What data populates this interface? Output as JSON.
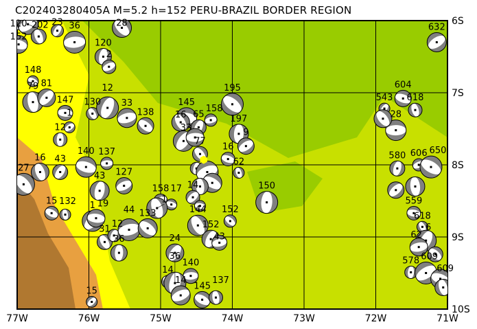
{
  "title": "C202403280405A M=5.2 h=152 PERU-BRAZIL BORDER REGION",
  "colors": {
    "lowland": "#99cc00",
    "plain": "#c8e000",
    "foothill": "#ffff00",
    "andes_low": "#e8a040",
    "andes_high": "#b07830",
    "compression": "#808080",
    "epicenter": "#ffff00"
  },
  "axes": {
    "lon_ticks": [
      {
        "value": -77,
        "label": "77W"
      },
      {
        "value": -76,
        "label": "76W"
      },
      {
        "value": -75,
        "label": "75W"
      },
      {
        "value": -74,
        "label": "74W"
      },
      {
        "value": -73,
        "label": "73W"
      },
      {
        "value": -72,
        "label": "72W"
      },
      {
        "value": -71,
        "label": "71W"
      }
    ],
    "lat_ticks": [
      {
        "value": -6,
        "label": "6S"
      },
      {
        "value": -7,
        "label": "7S"
      },
      {
        "value": -8,
        "label": "8S"
      },
      {
        "value": -9,
        "label": "9S"
      },
      {
        "value": -10,
        "label": "10S"
      }
    ],
    "lon_range": [
      -77,
      -71
    ],
    "lat_range": [
      -10,
      -6
    ]
  },
  "epicenter": {
    "lon": -74.4,
    "lat": -7.93
  },
  "events": [
    {
      "lon": -76.98,
      "lat": -6.05,
      "label": "120"
    },
    {
      "lon": -76.85,
      "lat": -6.05,
      "label": "202"
    },
    {
      "lon": -76.98,
      "lat": -6.33,
      "label": "152"
    },
    {
      "lon": -76.7,
      "lat": -6.22,
      "label": ""
    },
    {
      "lon": -76.44,
      "lat": -6.14,
      "label": "23"
    },
    {
      "lon": -76.2,
      "lat": -6.3,
      "label": "36"
    },
    {
      "lon": -75.54,
      "lat": -6.1,
      "label": "28"
    },
    {
      "lon": -75.8,
      "lat": -6.5,
      "label": "120"
    },
    {
      "lon": -75.72,
      "lat": -6.64,
      "label": "2"
    },
    {
      "lon": -76.78,
      "lat": -6.84,
      "label": "148"
    },
    {
      "lon": -76.78,
      "lat": -7.13,
      "label": "79"
    },
    {
      "lon": -76.59,
      "lat": -7.07,
      "label": "81"
    },
    {
      "lon": -76.33,
      "lat": -7.28,
      "label": "147"
    },
    {
      "lon": -75.95,
      "lat": -7.29,
      "label": "130"
    },
    {
      "lon": -75.74,
      "lat": -7.21,
      "label": "12"
    },
    {
      "lon": -75.47,
      "lat": -7.35,
      "label": "33"
    },
    {
      "lon": -75.21,
      "lat": -7.46,
      "label": "138"
    },
    {
      "lon": -76.4,
      "lat": -7.65,
      "label": "12"
    },
    {
      "lon": -76.27,
      "lat": -7.48,
      "label": "1"
    },
    {
      "lon": -76.04,
      "lat": -8.03,
      "label": "140"
    },
    {
      "lon": -76.68,
      "lat": -8.1,
      "label": "16"
    },
    {
      "lon": -76.4,
      "lat": -8.1,
      "label": "43"
    },
    {
      "lon": -75.75,
      "lat": -7.98,
      "label": "137"
    },
    {
      "lon": -76.91,
      "lat": -8.27,
      "label": "27"
    },
    {
      "lon": -75.85,
      "lat": -8.36,
      "label": "43"
    },
    {
      "lon": -75.51,
      "lat": -8.29,
      "label": "127"
    },
    {
      "lon": -76.52,
      "lat": -8.67,
      "label": "15"
    },
    {
      "lon": -76.33,
      "lat": -8.69,
      "label": "132"
    },
    {
      "lon": -75.95,
      "lat": -8.78,
      "label": "1"
    },
    {
      "lon": -75.9,
      "lat": -8.74,
      "label": "19"
    },
    {
      "lon": -75.78,
      "lat": -9.07,
      "label": "31"
    },
    {
      "lon": -75.65,
      "lat": -8.98,
      "label": "12"
    },
    {
      "lon": -75.44,
      "lat": -8.9,
      "label": "44"
    },
    {
      "lon": -75.18,
      "lat": -8.88,
      "label": "133"
    },
    {
      "lon": -75.58,
      "lat": -9.22,
      "label": "36"
    },
    {
      "lon": -75.0,
      "lat": -8.5,
      "label": "158"
    },
    {
      "lon": -74.85,
      "lat": -8.55,
      "label": "17"
    },
    {
      "lon": -75.05,
      "lat": -8.6,
      "label": "1"
    },
    {
      "lon": -74.8,
      "lat": -9.22,
      "label": "24"
    },
    {
      "lon": -74.58,
      "lat": -9.54,
      "label": "140"
    },
    {
      "lon": -74.9,
      "lat": -9.62,
      "label": "14"
    },
    {
      "lon": -74.8,
      "lat": -9.64,
      "label": "36"
    },
    {
      "lon": -74.72,
      "lat": -9.81,
      "label": "14"
    },
    {
      "lon": -74.42,
      "lat": -9.87,
      "label": "145"
    },
    {
      "lon": -74.23,
      "lat": -9.84,
      "label": "137"
    },
    {
      "lon": -75.96,
      "lat": -9.9,
      "label": "15"
    },
    {
      "lon": -74.64,
      "lat": -7.35,
      "label": "145"
    },
    {
      "lon": -74.72,
      "lat": -7.41,
      "label": "16"
    },
    {
      "lon": -74.47,
      "lat": -7.48,
      "label": "65"
    },
    {
      "lon": -74.3,
      "lat": -7.38,
      "label": "158"
    },
    {
      "lon": -74.0,
      "lat": -7.16,
      "label": "195"
    },
    {
      "lon": -73.91,
      "lat": -7.57,
      "label": "197"
    },
    {
      "lon": -73.81,
      "lat": -7.74,
      "label": "9"
    },
    {
      "lon": -74.06,
      "lat": -7.92,
      "label": "16"
    },
    {
      "lon": -73.91,
      "lat": -8.11,
      "label": "62"
    },
    {
      "lon": -74.68,
      "lat": -7.67,
      "label": "33"
    },
    {
      "lon": -74.52,
      "lat": -7.62,
      "label": ""
    },
    {
      "lon": -74.45,
      "lat": -7.85,
      "label": "77"
    },
    {
      "lon": -74.5,
      "lat": -8.05,
      "label": ""
    },
    {
      "lon": -74.35,
      "lat": -8.1,
      "label": ""
    },
    {
      "lon": -74.28,
      "lat": -8.25,
      "label": ""
    },
    {
      "lon": -74.45,
      "lat": -8.3,
      "label": ""
    },
    {
      "lon": -74.55,
      "lat": -8.45,
      "label": "14"
    },
    {
      "lon": -74.45,
      "lat": -8.57,
      "label": ""
    },
    {
      "lon": -74.48,
      "lat": -8.84,
      "label": "144"
    },
    {
      "lon": -74.3,
      "lat": -9.03,
      "label": "152"
    },
    {
      "lon": -74.18,
      "lat": -9.08,
      "label": "43"
    },
    {
      "lon": -74.03,
      "lat": -8.78,
      "label": "152"
    },
    {
      "lon": -73.52,
      "lat": -8.52,
      "label": "150"
    },
    {
      "lon": -71.15,
      "lat": -6.3,
      "label": "632"
    },
    {
      "lon": -71.62,
      "lat": -7.08,
      "label": "604"
    },
    {
      "lon": -71.45,
      "lat": -7.24,
      "label": "618"
    },
    {
      "lon": -71.88,
      "lat": -7.22,
      "label": "543"
    },
    {
      "lon": -71.72,
      "lat": -7.52,
      "label": "28"
    },
    {
      "lon": -71.9,
      "lat": -7.36,
      "label": ""
    },
    {
      "lon": -71.7,
      "lat": -8.05,
      "label": "580"
    },
    {
      "lon": -71.4,
      "lat": -8.0,
      "label": "606"
    },
    {
      "lon": -71.23,
      "lat": -8.03,
      "label": "650"
    },
    {
      "lon": -71.45,
      "lat": -8.3,
      "label": ""
    },
    {
      "lon": -71.72,
      "lat": -8.35,
      "label": ""
    },
    {
      "lon": -71.47,
      "lat": -8.67,
      "label": "559"
    },
    {
      "lon": -71.35,
      "lat": -8.86,
      "label": "618"
    },
    {
      "lon": -71.3,
      "lat": -9.05,
      "label": "6"
    },
    {
      "lon": -71.4,
      "lat": -9.14,
      "label": "62"
    },
    {
      "lon": -71.17,
      "lat": -9.24,
      "label": ""
    },
    {
      "lon": -71.51,
      "lat": -9.49,
      "label": "578"
    },
    {
      "lon": -71.3,
      "lat": -9.5,
      "label": "609"
    },
    {
      "lon": -71.1,
      "lat": -9.58,
      "label": "609"
    },
    {
      "lon": -71.06,
      "lat": -9.7,
      "label": ""
    }
  ]
}
